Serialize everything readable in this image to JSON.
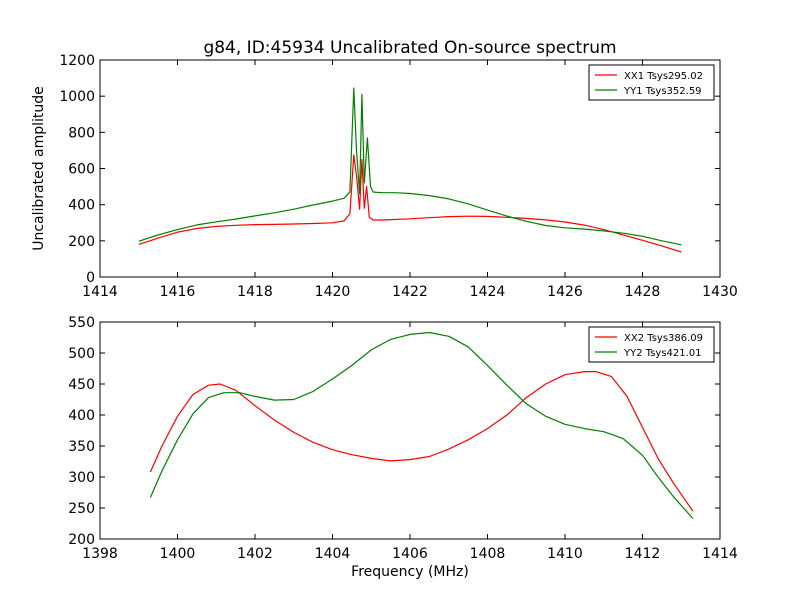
{
  "figure": {
    "title": "g84, ID:45934 Uncalibrated On-source spectrum",
    "background": "#ffffff"
  },
  "chart_data": [
    {
      "type": "line",
      "xlabel": "",
      "ylabel": "Uncalibrated amplitude",
      "xlim": [
        1414,
        1430
      ],
      "ylim": [
        0,
        1200
      ],
      "xticks": [
        "1414",
        "1416",
        "1418",
        "1420",
        "1422",
        "1424",
        "1426",
        "1428",
        "1430"
      ],
      "yticks": [
        "0",
        "200",
        "400",
        "600",
        "800",
        "1000",
        "1200"
      ],
      "legend": "top-right",
      "series": [
        {
          "name": "XX1 Tsys295.02",
          "color": "#ff0000",
          "x": [
            1415.0,
            1415.5,
            1416.0,
            1416.5,
            1417.0,
            1417.5,
            1418.0,
            1418.5,
            1419.0,
            1419.5,
            1420.0,
            1420.3,
            1420.45,
            1420.55,
            1420.62,
            1420.7,
            1420.76,
            1420.82,
            1420.88,
            1420.95,
            1421.05,
            1421.3,
            1421.6,
            1422.0,
            1422.5,
            1423.0,
            1423.5,
            1424.0,
            1424.5,
            1425.0,
            1425.5,
            1426.0,
            1426.5,
            1427.0,
            1427.5,
            1428.0,
            1428.5,
            1429.0
          ],
          "values": [
            180,
            215,
            248,
            268,
            280,
            286,
            290,
            291,
            293,
            296,
            300,
            310,
            350,
            675,
            560,
            375,
            650,
            380,
            500,
            330,
            315,
            315,
            318,
            322,
            328,
            334,
            336,
            335,
            330,
            324,
            316,
            304,
            287,
            262,
            233,
            203,
            172,
            138
          ]
        },
        {
          "name": "YY1 Tsys352.59",
          "color": "#008000",
          "x": [
            1415.0,
            1415.5,
            1416.0,
            1416.5,
            1417.0,
            1417.5,
            1418.0,
            1418.5,
            1419.0,
            1419.5,
            1420.0,
            1420.3,
            1420.45,
            1420.55,
            1420.62,
            1420.7,
            1420.76,
            1420.82,
            1420.9,
            1420.98,
            1421.05,
            1421.15,
            1421.3,
            1421.6,
            1422.0,
            1422.5,
            1423.0,
            1423.5,
            1424.0,
            1424.5,
            1425.0,
            1425.5,
            1426.0,
            1426.5,
            1427.0,
            1427.5,
            1428.0,
            1428.5,
            1429.0
          ],
          "values": [
            198,
            232,
            262,
            288,
            305,
            320,
            338,
            355,
            375,
            398,
            420,
            435,
            470,
            1045,
            700,
            460,
            1010,
            520,
            770,
            500,
            470,
            468,
            466,
            466,
            462,
            450,
            432,
            405,
            370,
            337,
            308,
            285,
            272,
            265,
            255,
            242,
            225,
            200,
            178
          ]
        }
      ]
    },
    {
      "type": "line",
      "xlabel": "Frequency (MHz)",
      "ylabel": "",
      "xlim": [
        1398,
        1414
      ],
      "ylim": [
        200,
        550
      ],
      "xticks": [
        "1398",
        "1400",
        "1402",
        "1404",
        "1406",
        "1408",
        "1410",
        "1412",
        "1414"
      ],
      "yticks": [
        "200",
        "250",
        "300",
        "350",
        "400",
        "450",
        "500",
        "550"
      ],
      "legend": "top-right",
      "series": [
        {
          "name": "XX2 Tsys386.09",
          "color": "#ff0000",
          "x": [
            1399.3,
            1399.6,
            1400.0,
            1400.4,
            1400.8,
            1401.1,
            1401.5,
            1402.0,
            1402.5,
            1403.0,
            1403.5,
            1404.0,
            1404.5,
            1405.0,
            1405.5,
            1406.0,
            1406.5,
            1407.0,
            1407.5,
            1408.0,
            1408.5,
            1409.0,
            1409.5,
            1410.0,
            1410.5,
            1410.8,
            1411.2,
            1411.6,
            1412.0,
            1412.4,
            1412.8,
            1413.3
          ],
          "values": [
            308,
            350,
            398,
            433,
            448,
            450,
            440,
            415,
            392,
            372,
            356,
            344,
            336,
            330,
            326,
            328,
            333,
            345,
            360,
            378,
            400,
            428,
            450,
            465,
            470,
            470,
            462,
            430,
            380,
            330,
            290,
            245
          ]
        },
        {
          "name": "YY2 Tsys421.01",
          "color": "#008000",
          "x": [
            1399.3,
            1399.6,
            1400.0,
            1400.4,
            1400.8,
            1401.2,
            1401.6,
            1402.0,
            1402.5,
            1403.0,
            1403.5,
            1404.0,
            1404.5,
            1405.0,
            1405.5,
            1406.0,
            1406.5,
            1407.0,
            1407.5,
            1408.0,
            1408.5,
            1409.0,
            1409.5,
            1410.0,
            1410.5,
            1411.0,
            1411.5,
            1412.0,
            1412.4,
            1412.8,
            1413.3
          ],
          "values": [
            267,
            310,
            360,
            402,
            428,
            436,
            436,
            430,
            424,
            425,
            438,
            458,
            480,
            505,
            522,
            530,
            533,
            527,
            510,
            480,
            448,
            418,
            398,
            385,
            378,
            373,
            362,
            335,
            300,
            268,
            233
          ]
        }
      ]
    }
  ]
}
